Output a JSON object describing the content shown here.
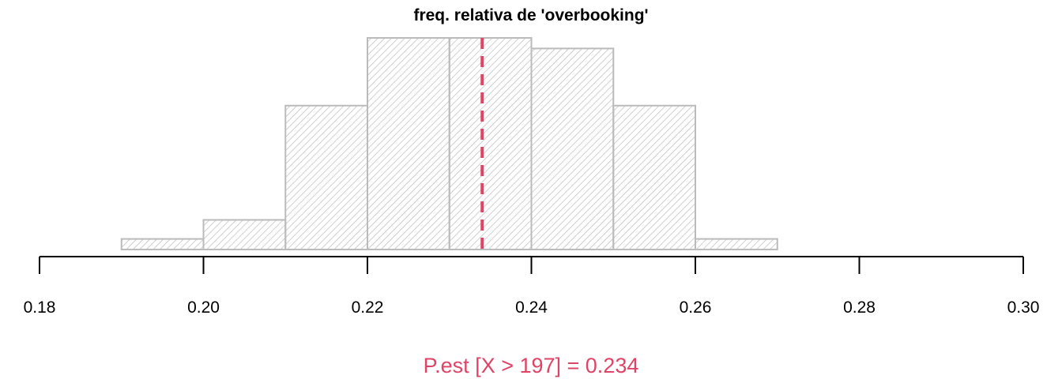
{
  "chart_data": {
    "type": "histogram",
    "title": "freq. relativa de 'overbooking'",
    "xlabel": "P.est [X > 197] = 0.234",
    "xlim": [
      0.18,
      0.3
    ],
    "x_ticks": [
      "0.18",
      "0.20",
      "0.22",
      "0.24",
      "0.26",
      "0.28",
      "0.30"
    ],
    "y_axis_shown": false,
    "grid": false,
    "legend": "none",
    "bins": [
      {
        "left": 0.19,
        "right": 0.2,
        "height": 0.05
      },
      {
        "left": 0.2,
        "right": 0.21,
        "height": 0.14
      },
      {
        "left": 0.21,
        "right": 0.22,
        "height": 0.68
      },
      {
        "left": 0.22,
        "right": 0.23,
        "height": 1.0
      },
      {
        "left": 0.23,
        "right": 0.24,
        "height": 1.0
      },
      {
        "left": 0.24,
        "right": 0.25,
        "height": 0.95
      },
      {
        "left": 0.25,
        "right": 0.26,
        "height": 0.68
      },
      {
        "left": 0.26,
        "right": 0.27,
        "height": 0.05
      }
    ],
    "reference_line": {
      "x": 0.234,
      "style": "dashed"
    },
    "colors": {
      "bar_stroke": "#bbbbbb",
      "hatch": "#bbbbbb",
      "reference": "#dd4466",
      "xlabel": "#dd4466",
      "axis": "#000000"
    }
  }
}
